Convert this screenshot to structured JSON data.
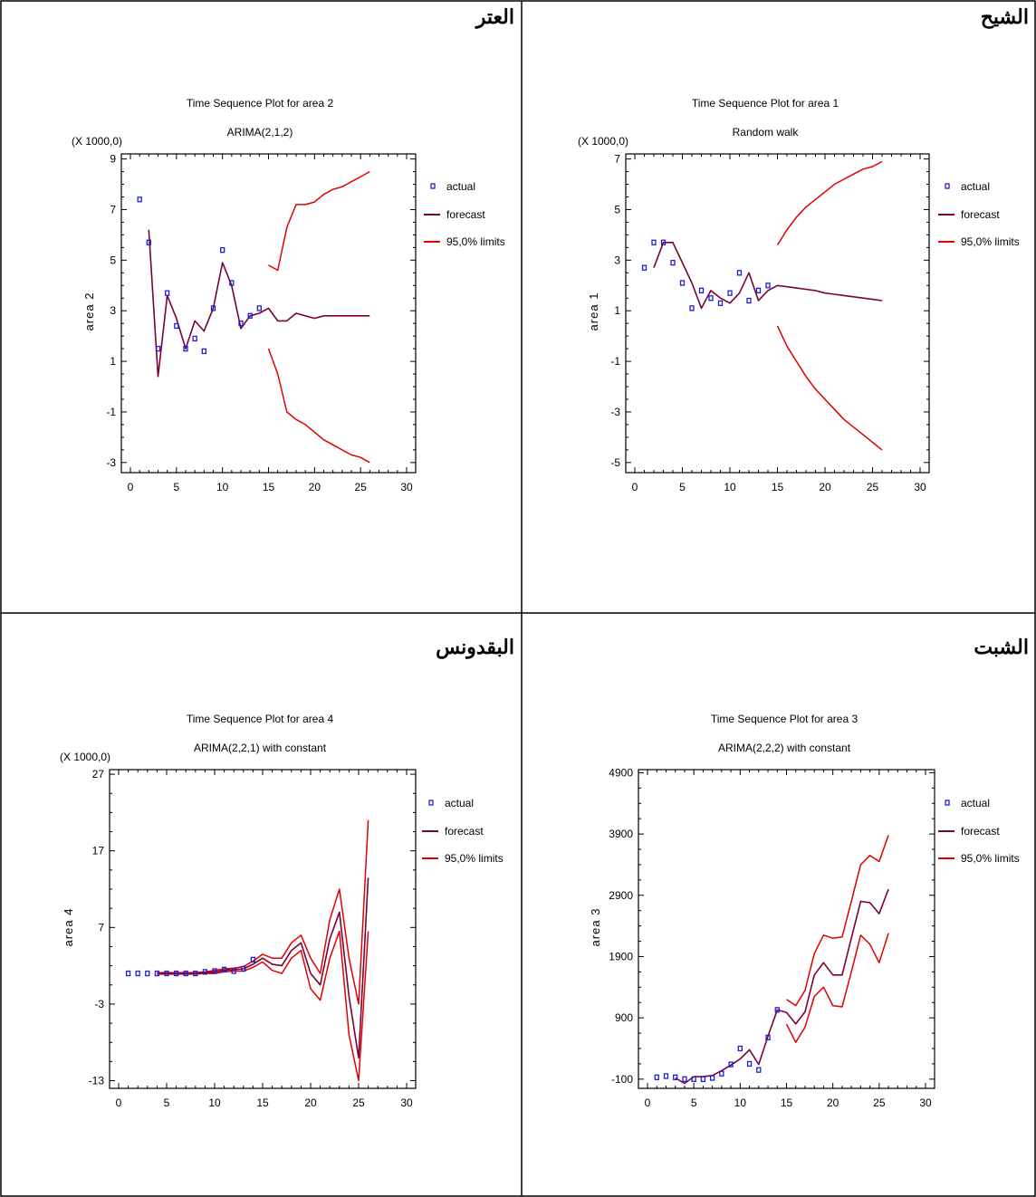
{
  "legend": {
    "actual": "actual",
    "forecast": "forecast",
    "limits": "95,0% limits"
  },
  "colors": {
    "actual": "#1f1fd0",
    "forecast": "#7a0038",
    "limits": "#e00000",
    "frame": "#000000"
  },
  "chart_data": [
    {
      "type": "line",
      "cell_title": "العتر",
      "title": "Time Sequence Plot for area 2",
      "subtitle": "ARIMA(2,1,2)",
      "scale_label": "(X 1000,0)",
      "ylabel": "area 2",
      "xlim": [
        0,
        30
      ],
      "ylim": [
        -3.4,
        9.2
      ],
      "xticks": [
        0,
        5,
        10,
        15,
        20,
        25,
        30
      ],
      "yticks": [
        -3,
        -1,
        1,
        3,
        5,
        7,
        9
      ],
      "actual": {
        "x": [
          1,
          2,
          3,
          4,
          5,
          6,
          7,
          8,
          9,
          10,
          11,
          12,
          13,
          14
        ],
        "y": [
          7.4,
          5.7,
          1.5,
          3.7,
          2.4,
          1.5,
          1.9,
          1.4,
          3.1,
          5.4,
          4.1,
          2.5,
          2.8,
          3.1
        ]
      },
      "forecast": {
        "x": [
          2,
          3,
          4,
          5,
          6,
          7,
          8,
          9,
          10,
          11,
          12,
          13,
          14,
          15,
          16,
          17,
          18,
          19,
          20,
          21,
          22,
          23,
          24,
          25,
          26
        ],
        "y": [
          6.2,
          0.4,
          3.6,
          2.7,
          1.5,
          2.6,
          2.2,
          3.1,
          4.9,
          4.0,
          2.3,
          2.8,
          2.9,
          3.1,
          2.6,
          2.6,
          2.9,
          2.8,
          2.7,
          2.8,
          2.8,
          2.8,
          2.8,
          2.8,
          2.8
        ]
      },
      "upper": {
        "x": [
          15,
          16,
          17,
          18,
          19,
          20,
          21,
          22,
          23,
          24,
          25,
          26
        ],
        "y": [
          4.8,
          4.6,
          6.3,
          7.2,
          7.2,
          7.3,
          7.6,
          7.8,
          7.9,
          8.1,
          8.3,
          8.5
        ]
      },
      "lower": {
        "x": [
          15,
          16,
          17,
          18,
          19,
          20,
          21,
          22,
          23,
          24,
          25,
          26
        ],
        "y": [
          1.5,
          0.5,
          -1.0,
          -1.3,
          -1.5,
          -1.8,
          -2.1,
          -2.3,
          -2.5,
          -2.7,
          -2.8,
          -3.0
        ]
      }
    },
    {
      "type": "line",
      "cell_title": "الشيح",
      "title": "Time Sequence Plot for area 1",
      "subtitle": "Random walk",
      "scale_label": "(X 1000,0)",
      "ylabel": "area 1",
      "xlim": [
        0,
        30
      ],
      "ylim": [
        -5.4,
        7.2
      ],
      "xticks": [
        0,
        5,
        10,
        15,
        20,
        25,
        30
      ],
      "yticks": [
        -5,
        -3,
        -1,
        1,
        3,
        5,
        7
      ],
      "actual": {
        "x": [
          1,
          2,
          3,
          4,
          5,
          6,
          7,
          8,
          9,
          10,
          11,
          12,
          13,
          14
        ],
        "y": [
          2.7,
          3.7,
          3.7,
          2.9,
          2.1,
          1.1,
          1.8,
          1.5,
          1.3,
          1.7,
          2.5,
          1.4,
          1.8,
          2.0
        ]
      },
      "forecast": {
        "x": [
          2,
          3,
          4,
          5,
          6,
          7,
          8,
          9,
          10,
          11,
          12,
          13,
          14,
          15,
          16,
          17,
          18,
          19,
          20,
          21,
          22,
          23,
          24,
          25,
          26
        ],
        "y": [
          2.7,
          3.7,
          3.7,
          2.9,
          2.1,
          1.1,
          1.8,
          1.5,
          1.3,
          1.7,
          2.5,
          1.4,
          1.8,
          2.0,
          1.95,
          1.9,
          1.85,
          1.8,
          1.7,
          1.65,
          1.6,
          1.55,
          1.5,
          1.45,
          1.4
        ]
      },
      "upper": {
        "x": [
          15,
          16,
          17,
          18,
          19,
          20,
          21,
          22,
          23,
          24,
          25,
          26
        ],
        "y": [
          3.6,
          4.2,
          4.7,
          5.1,
          5.4,
          5.7,
          6.0,
          6.2,
          6.4,
          6.6,
          6.7,
          6.9
        ]
      },
      "lower": {
        "x": [
          15,
          16,
          17,
          18,
          19,
          20,
          21,
          22,
          23,
          24,
          25,
          26
        ],
        "y": [
          0.4,
          -0.4,
          -1.0,
          -1.6,
          -2.1,
          -2.5,
          -2.9,
          -3.3,
          -3.6,
          -3.9,
          -4.2,
          -4.5
        ]
      }
    },
    {
      "type": "line",
      "cell_title": "البقدونس",
      "title": "Time Sequence Plot for area 4",
      "subtitle": "ARIMA(2,2,1) with constant",
      "scale_label": "(X 1000,0)",
      "ylabel": "area 4",
      "xlim": [
        0,
        30
      ],
      "ylim": [
        -14,
        27.6
      ],
      "xticks": [
        0,
        5,
        10,
        15,
        20,
        25,
        30
      ],
      "yticks": [
        -13,
        -3,
        7,
        17,
        27
      ],
      "actual": {
        "x": [
          1,
          2,
          3,
          4,
          5,
          6,
          7,
          8,
          9,
          10,
          11,
          12,
          13,
          14
        ],
        "y": [
          1.0,
          1.0,
          1.0,
          1.0,
          1.0,
          1.0,
          1.0,
          1.0,
          1.2,
          1.3,
          1.5,
          1.3,
          1.6,
          2.8
        ]
      },
      "forecast": {
        "x": [
          4,
          5,
          6,
          7,
          8,
          9,
          10,
          11,
          12,
          13,
          14,
          15,
          16,
          17,
          18,
          19,
          20,
          21,
          22,
          23,
          24,
          25,
          26
        ],
        "y": [
          1.0,
          1.0,
          1.0,
          1.0,
          1.0,
          1.1,
          1.2,
          1.4,
          1.5,
          1.6,
          2.2,
          3.0,
          2.2,
          2.0,
          4.0,
          5.0,
          1.0,
          -0.5,
          5.5,
          9.0,
          -2.0,
          -10.0,
          13.5
        ]
      },
      "upper": {
        "x": [
          4,
          5,
          6,
          7,
          8,
          9,
          10,
          11,
          12,
          13,
          14,
          15,
          16,
          17,
          18,
          19,
          20,
          21,
          22,
          23,
          24,
          25,
          26
        ],
        "y": [
          1.1,
          1.1,
          1.1,
          1.1,
          1.1,
          1.2,
          1.4,
          1.6,
          1.7,
          1.9,
          2.6,
          3.5,
          3.0,
          3.0,
          5.0,
          6.0,
          3.0,
          1.0,
          8.0,
          12.0,
          3.0,
          -3.0,
          21.0
        ]
      },
      "lower": {
        "x": [
          4,
          5,
          6,
          7,
          8,
          9,
          10,
          11,
          12,
          13,
          14,
          15,
          16,
          17,
          18,
          19,
          20,
          21,
          22,
          23,
          24,
          25,
          26
        ],
        "y": [
          0.9,
          0.9,
          0.9,
          0.9,
          0.9,
          1.0,
          1.0,
          1.2,
          1.3,
          1.3,
          1.8,
          2.5,
          1.4,
          1.0,
          3.0,
          4.0,
          -1.0,
          -2.5,
          3.0,
          6.5,
          -7.0,
          -13.0,
          6.5
        ]
      }
    },
    {
      "type": "line",
      "cell_title": "الشبت",
      "title": "Time Sequence Plot for area 3",
      "subtitle": "ARIMA(2,2,2) with constant",
      "scale_label": "",
      "ylabel": "area 3",
      "xlim": [
        0,
        30
      ],
      "ylim": [
        -250,
        4950
      ],
      "xticks": [
        0,
        5,
        10,
        15,
        20,
        25,
        30
      ],
      "yticks": [
        -100,
        900,
        1900,
        2900,
        3900,
        4900
      ],
      "actual": {
        "x": [
          1,
          2,
          3,
          4,
          5,
          6,
          7,
          8,
          9,
          10,
          11,
          12,
          13,
          14
        ],
        "y": [
          -70,
          -50,
          -70,
          -100,
          -100,
          -100,
          -80,
          -10,
          140,
          400,
          150,
          50,
          580,
          1030
        ]
      },
      "forecast": {
        "x": [
          3,
          4,
          5,
          6,
          7,
          8,
          9,
          10,
          11,
          12,
          13,
          14,
          15,
          16,
          17,
          18,
          19,
          20,
          21,
          22,
          23,
          24,
          25,
          26
        ],
        "y": [
          -80,
          -170,
          -60,
          -60,
          -40,
          40,
          130,
          230,
          380,
          140,
          600,
          1030,
          990,
          800,
          1000,
          1600,
          1800,
          1600,
          1600,
          2200,
          2800,
          2780,
          2600,
          3000
        ]
      },
      "upper": {
        "x": [
          15,
          16,
          17,
          18,
          19,
          20,
          21,
          22,
          23,
          24,
          25,
          26
        ],
        "y": [
          1200,
          1100,
          1350,
          1950,
          2250,
          2200,
          2220,
          2800,
          3400,
          3550,
          3450,
          3880
        ]
      },
      "lower": {
        "x": [
          15,
          16,
          17,
          18,
          19,
          20,
          21,
          22,
          23,
          24,
          25,
          26
        ],
        "y": [
          800,
          500,
          750,
          1250,
          1400,
          1100,
          1080,
          1650,
          2250,
          2100,
          1800,
          2280
        ]
      }
    }
  ]
}
